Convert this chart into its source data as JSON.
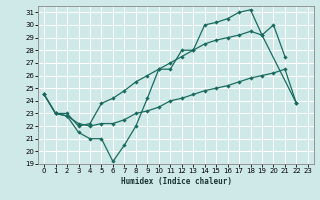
{
  "xlabel": "Humidex (Indice chaleur)",
  "xlim": [
    -0.5,
    23.5
  ],
  "ylim": [
    19,
    31.5
  ],
  "yticks": [
    19,
    20,
    21,
    22,
    23,
    24,
    25,
    26,
    27,
    28,
    29,
    30,
    31
  ],
  "xticks": [
    0,
    1,
    2,
    3,
    4,
    5,
    6,
    7,
    8,
    9,
    10,
    11,
    12,
    13,
    14,
    15,
    16,
    17,
    18,
    19,
    20,
    21,
    22,
    23
  ],
  "bg_color": "#cfe9e9",
  "grid_color": "#ffffff",
  "line_color": "#1a6b5e",
  "line1_y": [
    24.5,
    23.0,
    22.8,
    21.5,
    21.0,
    21.0,
    19.2,
    20.5,
    22.0,
    24.2,
    26.5,
    26.5,
    28.0,
    28.0,
    30.0,
    30.2,
    30.5,
    31.0,
    31.2,
    29.2,
    30.0,
    27.5,
    null,
    null
  ],
  "line2_y": [
    24.5,
    23.0,
    23.0,
    22.0,
    22.2,
    23.8,
    24.2,
    24.8,
    25.5,
    26.0,
    26.5,
    27.0,
    27.5,
    28.0,
    28.5,
    28.8,
    29.0,
    29.2,
    29.5,
    29.2,
    null,
    null,
    23.8,
    null
  ],
  "line3_y": [
    24.5,
    23.0,
    22.8,
    22.2,
    22.0,
    22.2,
    22.2,
    22.5,
    23.0,
    23.2,
    23.5,
    24.0,
    24.2,
    24.5,
    24.8,
    25.0,
    25.2,
    25.5,
    25.8,
    26.0,
    26.2,
    26.5,
    23.8,
    null
  ]
}
